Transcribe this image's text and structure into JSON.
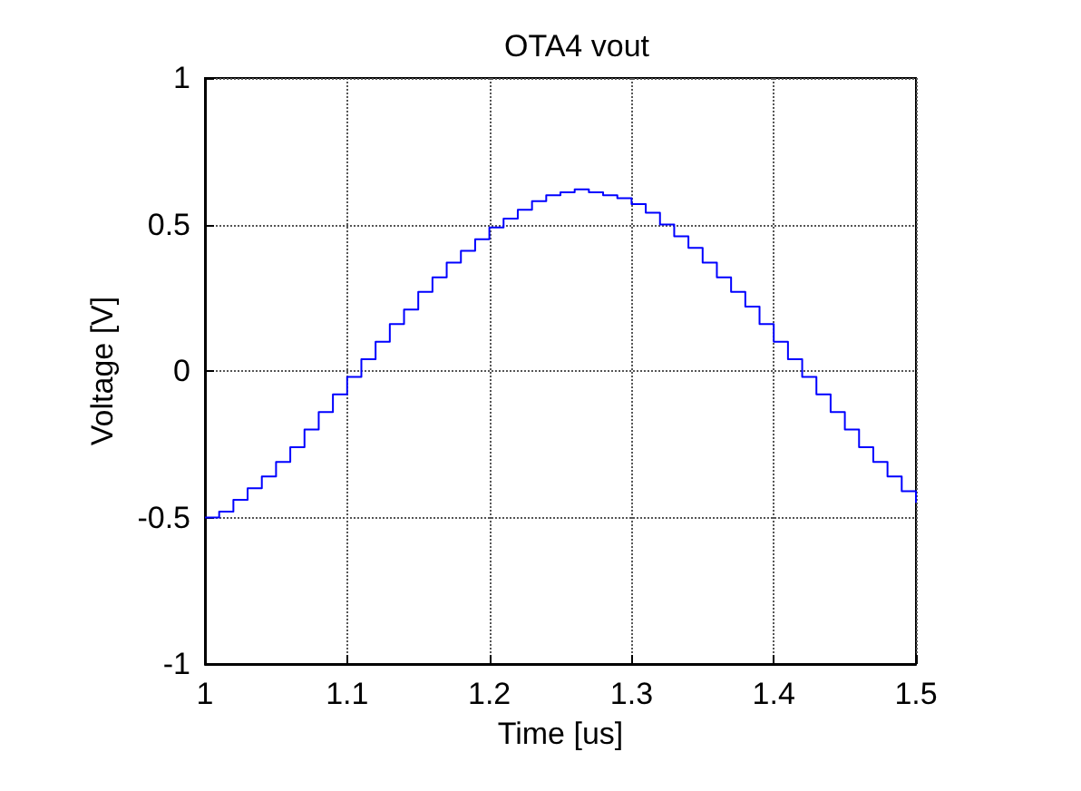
{
  "chart_data": {
    "type": "step",
    "title": "OTA4 vout",
    "xlabel": "Time [us]",
    "ylabel": "Voltage [V]",
    "x": [
      1.0,
      1.01,
      1.02,
      1.03,
      1.04,
      1.05,
      1.06,
      1.07,
      1.08,
      1.09,
      1.1,
      1.11,
      1.12,
      1.13,
      1.14,
      1.15,
      1.16,
      1.17,
      1.18,
      1.19,
      1.2,
      1.21,
      1.22,
      1.23,
      1.24,
      1.25,
      1.26,
      1.27,
      1.28,
      1.29,
      1.3,
      1.31,
      1.32,
      1.33,
      1.34,
      1.35,
      1.36,
      1.37,
      1.38,
      1.39,
      1.4,
      1.41,
      1.42,
      1.43,
      1.44,
      1.45,
      1.46,
      1.47,
      1.48,
      1.49,
      1.5
    ],
    "series": [
      {
        "color": "#0000ff",
        "values": [
          -0.5,
          -0.48,
          -0.44,
          -0.4,
          -0.36,
          -0.31,
          -0.26,
          -0.2,
          -0.14,
          -0.08,
          -0.02,
          0.04,
          0.1,
          0.16,
          0.21,
          0.27,
          0.32,
          0.37,
          0.41,
          0.45,
          0.49,
          0.52,
          0.55,
          0.58,
          0.6,
          0.61,
          0.62,
          0.61,
          0.6,
          0.59,
          0.57,
          0.54,
          0.5,
          0.46,
          0.42,
          0.37,
          0.32,
          0.27,
          0.22,
          0.16,
          0.1,
          0.04,
          -0.02,
          -0.08,
          -0.14,
          -0.2,
          -0.26,
          -0.31,
          -0.36,
          -0.41,
          -0.45
        ]
      }
    ],
    "xlim": [
      1,
      1.5
    ],
    "xticks": [
      1,
      1.1,
      1.2,
      1.3,
      1.4,
      1.5
    ],
    "ylim": [
      -1,
      1
    ],
    "yticks": [
      -1,
      -0.5,
      0,
      0.5,
      1
    ],
    "grid": true,
    "marker": "none",
    "line_style": "solid"
  }
}
